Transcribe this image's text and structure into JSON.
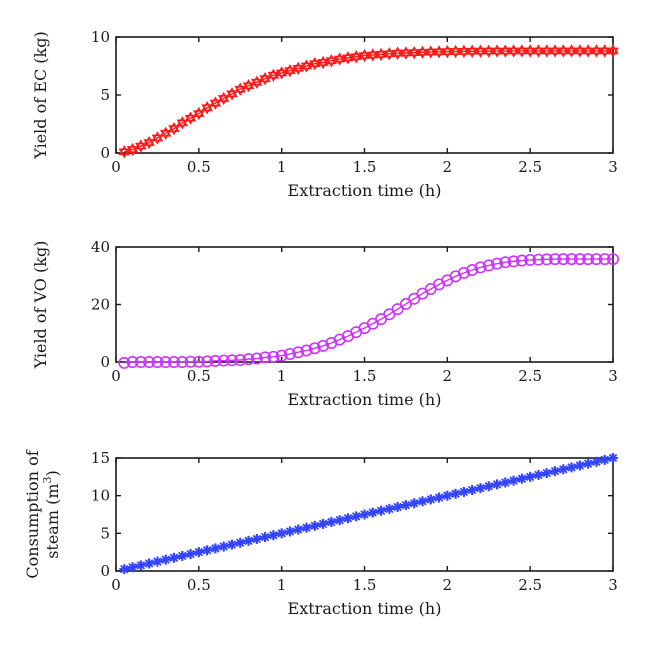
{
  "chart_data": [
    {
      "type": "line",
      "title": "",
      "xlabel": "Extraction time (h)",
      "ylabel": "Yield of EC (kg)",
      "ylabel_lines": [
        "Yield of EC (kg)"
      ],
      "xlim": [
        0,
        3
      ],
      "ylim": [
        0,
        10
      ],
      "xticks": [
        0,
        0.5,
        1,
        1.5,
        2,
        2.5,
        3
      ],
      "xtick_labels": [
        "0",
        "0.5",
        "1",
        "1.5",
        "2",
        "2.5",
        "3"
      ],
      "yticks": [
        0,
        5,
        10
      ],
      "ytick_labels": [
        "0",
        "5",
        "10"
      ],
      "grid": false,
      "series": [
        {
          "name": "Yield of EC",
          "color": "#ff1a1a",
          "marker": "hexagram",
          "x": [
            0.05,
            0.1,
            0.15,
            0.2,
            0.25,
            0.3,
            0.35,
            0.4,
            0.45,
            0.5,
            0.55,
            0.6,
            0.65,
            0.7,
            0.75,
            0.8,
            0.85,
            0.9,
            0.95,
            1.0,
            1.05,
            1.1,
            1.15,
            1.2,
            1.25,
            1.3,
            1.35,
            1.4,
            1.45,
            1.5,
            1.55,
            1.6,
            1.65,
            1.7,
            1.75,
            1.8,
            1.85,
            1.9,
            1.95,
            2.0,
            2.05,
            2.1,
            2.15,
            2.2,
            2.25,
            2.3,
            2.35,
            2.4,
            2.45,
            2.5,
            2.55,
            2.6,
            2.65,
            2.7,
            2.75,
            2.8,
            2.85,
            2.9,
            2.95,
            3.0
          ],
          "values": [
            0.1,
            0.3,
            0.6,
            0.9,
            1.3,
            1.7,
            2.1,
            2.6,
            3.0,
            3.4,
            3.9,
            4.3,
            4.7,
            5.1,
            5.5,
            5.8,
            6.1,
            6.4,
            6.7,
            6.9,
            7.1,
            7.3,
            7.5,
            7.7,
            7.8,
            7.95,
            8.1,
            8.2,
            8.3,
            8.4,
            8.45,
            8.5,
            8.55,
            8.6,
            8.62,
            8.65,
            8.68,
            8.7,
            8.72,
            8.74,
            8.75,
            8.76,
            8.77,
            8.78,
            8.78,
            8.79,
            8.79,
            8.8,
            8.8,
            8.8,
            8.8,
            8.8,
            8.8,
            8.8,
            8.8,
            8.8,
            8.8,
            8.8,
            8.8,
            8.8
          ]
        }
      ]
    },
    {
      "type": "line",
      "title": "",
      "xlabel": "Extraction time (h)",
      "ylabel": "Yield of VO (kg)",
      "ylabel_lines": [
        "Yield of VO (kg)"
      ],
      "xlim": [
        0,
        3
      ],
      "ylim": [
        0,
        40
      ],
      "xticks": [
        0,
        0.5,
        1,
        1.5,
        2,
        2.5,
        3
      ],
      "xtick_labels": [
        "0",
        "0.5",
        "1",
        "1.5",
        "2",
        "2.5",
        "3"
      ],
      "yticks": [
        0,
        20,
        40
      ],
      "ytick_labels": [
        "0",
        "20",
        "40"
      ],
      "grid": false,
      "series": [
        {
          "name": "Yield of VO",
          "color": "#cc33ff",
          "marker": "circle",
          "x": [
            0.05,
            0.1,
            0.15,
            0.2,
            0.25,
            0.3,
            0.35,
            0.4,
            0.45,
            0.5,
            0.55,
            0.6,
            0.65,
            0.7,
            0.75,
            0.8,
            0.85,
            0.9,
            0.95,
            1.0,
            1.05,
            1.1,
            1.15,
            1.2,
            1.25,
            1.3,
            1.35,
            1.4,
            1.45,
            1.5,
            1.55,
            1.6,
            1.65,
            1.7,
            1.75,
            1.8,
            1.85,
            1.9,
            1.95,
            2.0,
            2.05,
            2.1,
            2.15,
            2.2,
            2.25,
            2.3,
            2.35,
            2.4,
            2.45,
            2.5,
            2.55,
            2.6,
            2.65,
            2.7,
            2.75,
            2.8,
            2.85,
            2.9,
            2.95,
            3.0
          ],
          "values": [
            -0.3,
            0.0,
            0.0,
            0.0,
            0.0,
            0.0,
            0.0,
            0.0,
            0.1,
            0.1,
            0.2,
            0.4,
            0.5,
            0.6,
            0.7,
            1.0,
            1.2,
            1.6,
            1.8,
            2.2,
            2.8,
            3.4,
            4.0,
            4.8,
            5.6,
            6.6,
            7.8,
            9.0,
            10.4,
            11.8,
            13.3,
            14.9,
            16.6,
            18.4,
            20.2,
            22.0,
            23.8,
            25.4,
            27.0,
            28.4,
            29.8,
            31.0,
            32.0,
            32.9,
            33.6,
            34.2,
            34.7,
            35.0,
            35.3,
            35.5,
            35.6,
            35.7,
            35.8,
            35.8,
            35.8,
            35.8,
            35.8,
            35.8,
            35.8,
            35.8
          ]
        }
      ]
    },
    {
      "type": "line",
      "title": "",
      "xlabel": "Extraction time (h)",
      "ylabel": "Consumption of steam (m3)",
      "ylabel_lines": [
        "Consumption of",
        "steam (m",
        "3",
        ")"
      ],
      "xlim": [
        0,
        3
      ],
      "ylim": [
        0,
        15
      ],
      "xticks": [
        0,
        0.5,
        1,
        1.5,
        2,
        2.5,
        3
      ],
      "xtick_labels": [
        "0",
        "0.5",
        "1",
        "1.5",
        "2",
        "2.5",
        "3"
      ],
      "yticks": [
        0,
        5,
        10,
        15
      ],
      "ytick_labels": [
        "0",
        "5",
        "10",
        "15"
      ],
      "grid": false,
      "series": [
        {
          "name": "Consumption of steam",
          "color": "#3344ff",
          "marker": "asterisk",
          "x": [
            0.05,
            0.1,
            0.15,
            0.2,
            0.25,
            0.3,
            0.35,
            0.4,
            0.45,
            0.5,
            0.55,
            0.6,
            0.65,
            0.7,
            0.75,
            0.8,
            0.85,
            0.9,
            0.95,
            1.0,
            1.05,
            1.1,
            1.15,
            1.2,
            1.25,
            1.3,
            1.35,
            1.4,
            1.45,
            1.5,
            1.55,
            1.6,
            1.65,
            1.7,
            1.75,
            1.8,
            1.85,
            1.9,
            1.95,
            2.0,
            2.05,
            2.1,
            2.15,
            2.2,
            2.25,
            2.3,
            2.35,
            2.4,
            2.45,
            2.5,
            2.55,
            2.6,
            2.65,
            2.7,
            2.75,
            2.8,
            2.85,
            2.9,
            2.95,
            3.0
          ],
          "values": [
            0.25,
            0.5,
            0.75,
            1.0,
            1.25,
            1.5,
            1.75,
            2.0,
            2.25,
            2.5,
            2.75,
            3.0,
            3.25,
            3.5,
            3.75,
            4.0,
            4.25,
            4.5,
            4.75,
            5.0,
            5.25,
            5.5,
            5.75,
            6.0,
            6.25,
            6.5,
            6.75,
            7.0,
            7.25,
            7.5,
            7.75,
            8.0,
            8.25,
            8.5,
            8.75,
            9.0,
            9.25,
            9.5,
            9.75,
            10.0,
            10.25,
            10.5,
            10.75,
            11.0,
            11.25,
            11.5,
            11.75,
            12.0,
            12.25,
            12.5,
            12.75,
            13.0,
            13.25,
            13.5,
            13.75,
            14.0,
            14.25,
            14.5,
            14.75,
            15.0
          ]
        }
      ]
    }
  ]
}
